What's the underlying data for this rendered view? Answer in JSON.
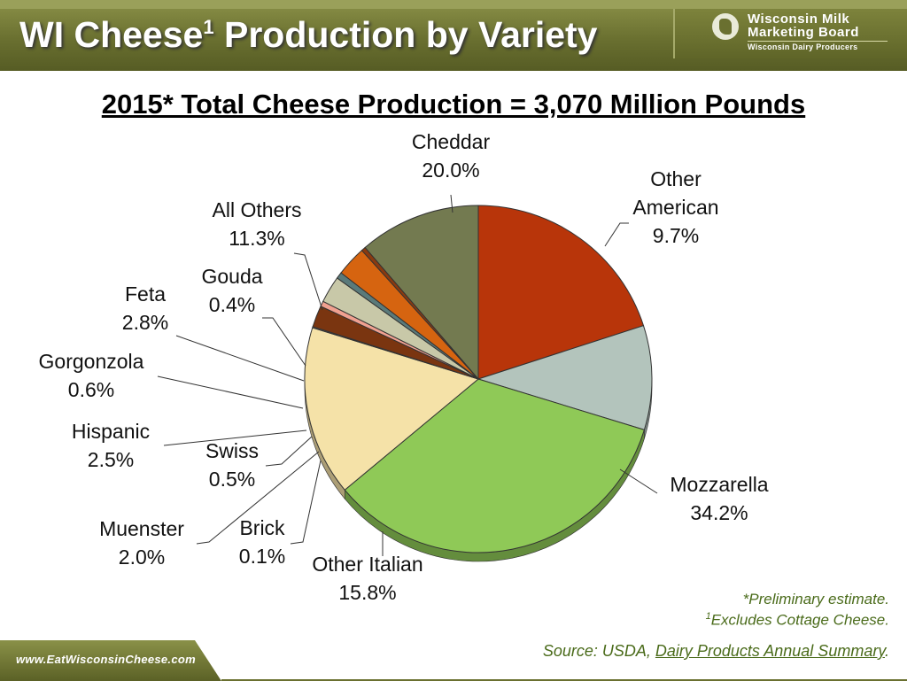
{
  "header": {
    "title_main": "WI Cheese",
    "title_sup": "1",
    "title_rest": " Production by Variety",
    "logo_line1": "Wisconsin Milk",
    "logo_line2": "Marketing Board",
    "logo_line3": "Wisconsin Dairy Producers"
  },
  "subtitle": "2015* Total Cheese Production = 3,070 Million Pounds",
  "notes": {
    "preliminary": "*Preliminary estimate.",
    "excludes_sup": "1",
    "excludes": "Excludes Cottage Cheese."
  },
  "footer": {
    "url": "www.EatWisconsinCheese.com",
    "source_prefix": "Source: USDA, ",
    "source_title": "Dairy Products Annual Summary",
    "source_suffix": "."
  },
  "chart_data": {
    "type": "pie",
    "title": "2015* Total Cheese Production = 3,070 Million Pounds",
    "start": "Cheddar at top, clockwise",
    "slices": [
      {
        "name": "Cheddar",
        "value": 20.0,
        "label": "20.0%",
        "color": "#b8350a"
      },
      {
        "name": "Other American",
        "value": 9.7,
        "label": "9.7%",
        "color": "#b3c4bc"
      },
      {
        "name": "Mozzarella",
        "value": 34.2,
        "label": "34.2%",
        "color": "#8fc957"
      },
      {
        "name": "Other Italian",
        "value": 15.8,
        "label": "15.8%",
        "color": "#f5e2a8"
      },
      {
        "name": "Brick",
        "value": 0.1,
        "label": "0.1%",
        "color": "#d9d9d9"
      },
      {
        "name": "Muenster",
        "value": 2.0,
        "label": "2.0%",
        "color": "#7a3510"
      },
      {
        "name": "Swiss",
        "value": 0.5,
        "label": "0.5%",
        "color": "#f0a090"
      },
      {
        "name": "Hispanic",
        "value": 2.5,
        "label": "2.5%",
        "color": "#c8c8a8"
      },
      {
        "name": "Gorgonzola",
        "value": 0.6,
        "label": "0.6%",
        "color": "#5a7a7a"
      },
      {
        "name": "Feta",
        "value": 2.8,
        "label": "2.8%",
        "color": "#d66410"
      },
      {
        "name": "Gouda",
        "value": 0.4,
        "label": "0.4%",
        "color": "#8a3a10"
      },
      {
        "name": "All Others",
        "value": 11.3,
        "label": "11.3%",
        "color": "#737a50"
      }
    ],
    "label_lines": {
      "Other American": [
        "Other",
        "American"
      ],
      "Other Italian": [
        "Other Italian"
      ]
    }
  }
}
